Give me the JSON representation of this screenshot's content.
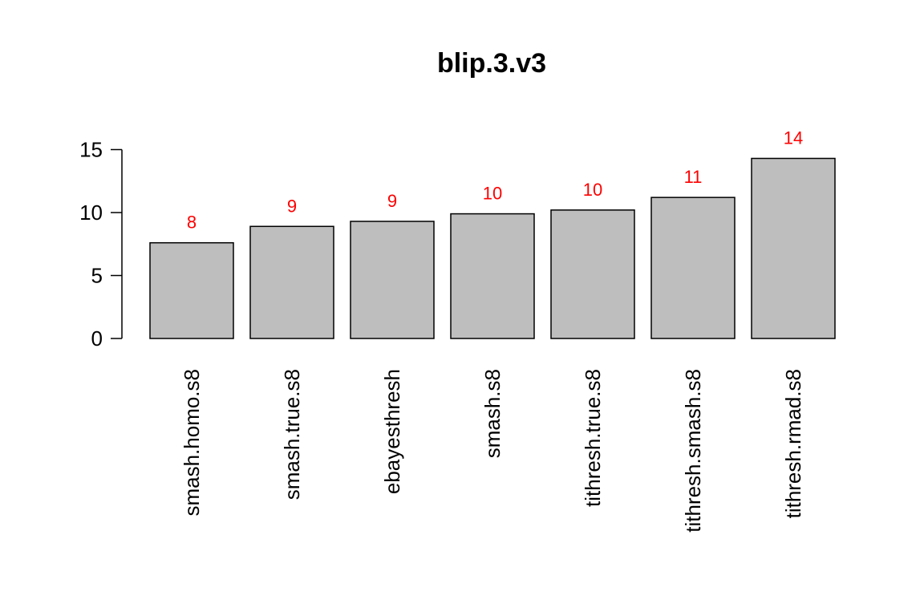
{
  "chart_data": {
    "type": "bar",
    "title": "blip.3.v3",
    "xlabel": "",
    "ylabel": "",
    "categories": [
      "smash.homo.s8",
      "smash.true.s8",
      "ebayesthresh",
      "smash.s8",
      "tithresh.true.s8",
      "tithresh.smash.s8",
      "tithresh.rmad.s8"
    ],
    "values": [
      7.6,
      8.9,
      9.3,
      9.9,
      10.2,
      11.2,
      14.3
    ],
    "data_labels": [
      "8",
      "9",
      "9",
      "10",
      "10",
      "11",
      "14"
    ],
    "yticks": [
      0,
      5,
      10,
      15
    ],
    "ylim": [
      0,
      15
    ],
    "grid": false,
    "legend": "none",
    "bar_color": "#bebebe",
    "bar_edge_color": "#000000",
    "data_label_color": "#ff0000"
  }
}
